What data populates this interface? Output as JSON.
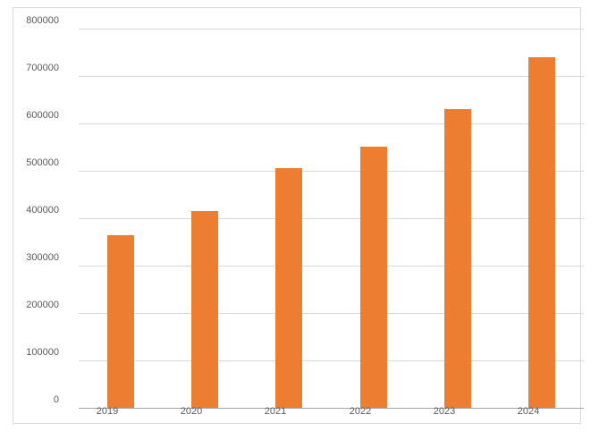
{
  "page": {
    "background_color": "#ffffff",
    "frame_border_color": "#d9d9d9"
  },
  "chart_data": {
    "type": "bar",
    "title": "",
    "xlabel": "",
    "ylabel": "",
    "categories": [
      "2019",
      "2020",
      "2021",
      "2022",
      "2023",
      "2024"
    ],
    "values": [
      365000,
      415000,
      505000,
      550000,
      630000,
      740000
    ],
    "series_color": "#ED7D31",
    "ylim": [
      0,
      800000
    ],
    "ytick_step": 100000,
    "ytick_labels": [
      "0",
      "100000",
      "200000",
      "300000",
      "400000",
      "500000",
      "600000",
      "700000",
      "800000"
    ],
    "grid": true,
    "gridline_color": "#d9d9d9",
    "axis_line_color": "#a6a6a6",
    "tick_label_color": "#595959",
    "legend": false
  }
}
